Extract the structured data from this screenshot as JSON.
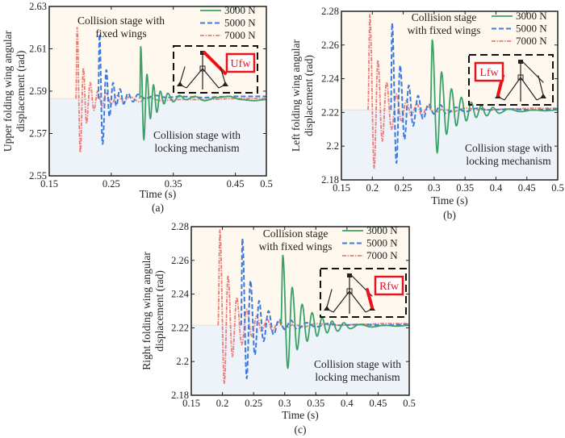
{
  "colors": {
    "series_3000": "#3aa367",
    "series_5000": "#3b7be0",
    "series_7000": "#ec7b78",
    "region_fixed": "#fef8ee",
    "region_locking": "#eef3f9",
    "inset_highlight": "#e8141a"
  },
  "chart_data": [
    {
      "id": "a",
      "type": "line",
      "caption": "(a)",
      "xlabel": "Time (s)",
      "ylabel_lines": [
        "Upper folding wing angular",
        "displacement (rad)"
      ],
      "xlim": [
        0.15,
        0.5
      ],
      "ylim": [
        2.55,
        2.63
      ],
      "xticks": [
        0.15,
        0.25,
        0.35,
        0.45,
        0.5
      ],
      "xtick_labels": [
        "0.15",
        "0.25",
        "0.35",
        "0.45",
        "0.5"
      ],
      "yticks": [
        2.55,
        2.57,
        2.59,
        2.61,
        2.63
      ],
      "ytick_labels": [
        "2.55",
        "2.57",
        "2.59",
        "2.61",
        "2.63"
      ],
      "threshold": 2.5865,
      "annotations": {
        "upper": [
          "Collision stage with",
          "fixed wings"
        ],
        "lower": [
          "Collision stage with",
          "locking mechanism"
        ]
      },
      "inset_label": "Ufw",
      "inset_highlight": "upper",
      "legend": [
        "3000 N",
        "5000 N",
        "7000 N"
      ],
      "legend_position": "top-right",
      "series": [
        {
          "name": "3000 N",
          "t0": 0.296,
          "peaks": [
            [
              0.2975,
              2.611
            ],
            [
              0.3025,
              2.567
            ],
            [
              0.3075,
              2.598
            ],
            [
              0.313,
              2.577
            ],
            [
              0.318,
              2.593
            ],
            [
              0.3235,
              2.58
            ],
            [
              0.329,
              2.59
            ],
            [
              0.335,
              2.584
            ],
            [
              0.341,
              2.589
            ],
            [
              0.35,
              2.585
            ],
            [
              0.36,
              2.588
            ],
            [
              0.37,
              2.586
            ],
            [
              0.385,
              2.5875
            ],
            [
              0.4,
              2.5855
            ],
            [
              0.42,
              2.587
            ],
            [
              0.44,
              2.5875
            ],
            [
              0.46,
              2.586
            ],
            [
              0.48,
              2.5855
            ],
            [
              0.5,
              2.586
            ]
          ]
        },
        {
          "name": "5000 N",
          "t0": 0.229,
          "peaks": [
            [
              0.231,
              2.617
            ],
            [
              0.236,
              2.565
            ],
            [
              0.242,
              2.6
            ],
            [
              0.247,
              2.578
            ],
            [
              0.253,
              2.594
            ],
            [
              0.258,
              2.583
            ],
            [
              0.264,
              2.591
            ],
            [
              0.27,
              2.584
            ],
            [
              0.277,
              2.589
            ],
            [
              0.285,
              2.585
            ],
            [
              0.293,
              2.5885
            ],
            [
              0.305,
              2.5865
            ],
            [
              0.32,
              2.588
            ],
            [
              0.34,
              2.587
            ],
            [
              0.36,
              2.5875
            ],
            [
              0.4,
              2.587
            ],
            [
              0.44,
              2.5875
            ],
            [
              0.48,
              2.5875
            ],
            [
              0.5,
              2.5875
            ]
          ]
        },
        {
          "name": "7000 N",
          "t0": 0.193,
          "peaks": [
            [
              0.195,
              2.62
            ],
            [
              0.2,
              2.561
            ],
            [
              0.205,
              2.601
            ],
            [
              0.21,
              2.575
            ],
            [
              0.216,
              2.594
            ],
            [
              0.222,
              2.581
            ],
            [
              0.228,
              2.59
            ],
            [
              0.235,
              2.583
            ],
            [
              0.242,
              2.589
            ],
            [
              0.25,
              2.584
            ],
            [
              0.26,
              2.588
            ],
            [
              0.27,
              2.585
            ],
            [
              0.28,
              2.5875
            ],
            [
              0.295,
              2.585
            ],
            [
              0.31,
              2.587
            ],
            [
              0.33,
              2.5855
            ],
            [
              0.36,
              2.586
            ],
            [
              0.4,
              2.586
            ],
            [
              0.45,
              2.5865
            ],
            [
              0.5,
              2.5865
            ]
          ]
        }
      ]
    },
    {
      "id": "b",
      "type": "line",
      "caption": "(b)",
      "xlabel": "Time (s)",
      "ylabel_lines": [
        "Left folding wing angular",
        "displacement (rad)"
      ],
      "xlim": [
        0.15,
        0.5
      ],
      "ylim": [
        2.18,
        2.28
      ],
      "xticks": [
        0.15,
        0.2,
        0.25,
        0.3,
        0.35,
        0.4,
        0.45,
        0.5
      ],
      "xtick_labels": [
        "0.15",
        "0.2",
        "0.25",
        "0.3",
        "0.35",
        "0.4",
        "0.45",
        "0.5"
      ],
      "yticks": [
        2.18,
        2.2,
        2.22,
        2.24,
        2.26,
        2.28
      ],
      "ytick_labels": [
        "2.18",
        "2.2",
        "2.22",
        "2.24",
        "2.26",
        "2.28"
      ],
      "threshold": 2.2215,
      "annotations": {
        "upper": [
          "Collision stage",
          "with fixed wings"
        ],
        "lower": [
          "Collision stage with",
          "locking mechanism"
        ]
      },
      "inset_label": "Lfw",
      "inset_highlight": "left",
      "legend": [
        "3000 N",
        "5000 N",
        "7000 N"
      ],
      "legend_position": "top-right",
      "series": [
        {
          "name": "3000 N",
          "t0": 0.294,
          "peaks": [
            [
              0.297,
              2.263
            ],
            [
              0.305,
              2.196
            ],
            [
              0.312,
              2.244
            ],
            [
              0.32,
              2.207
            ],
            [
              0.328,
              2.234
            ],
            [
              0.336,
              2.212
            ],
            [
              0.344,
              2.229
            ],
            [
              0.352,
              2.215
            ],
            [
              0.36,
              2.226
            ],
            [
              0.368,
              2.217
            ],
            [
              0.376,
              2.224
            ],
            [
              0.385,
              2.218
            ],
            [
              0.395,
              2.223
            ],
            [
              0.405,
              2.2195
            ],
            [
              0.42,
              2.222
            ],
            [
              0.44,
              2.2205
            ],
            [
              0.46,
              2.2215
            ],
            [
              0.48,
              2.221
            ],
            [
              0.5,
              2.2215
            ]
          ]
        },
        {
          "name": "5000 N",
          "t0": 0.23,
          "peaks": [
            [
              0.232,
              2.273
            ],
            [
              0.239,
              2.19
            ],
            [
              0.245,
              2.248
            ],
            [
              0.252,
              2.204
            ],
            [
              0.259,
              2.236
            ],
            [
              0.266,
              2.212
            ],
            [
              0.274,
              2.23
            ],
            [
              0.282,
              2.216
            ],
            [
              0.291,
              2.225
            ],
            [
              0.3,
              2.219
            ],
            [
              0.31,
              2.2245
            ],
            [
              0.32,
              2.219
            ],
            [
              0.335,
              2.223
            ],
            [
              0.35,
              2.2205
            ],
            [
              0.37,
              2.2225
            ],
            [
              0.39,
              2.2215
            ],
            [
              0.42,
              2.222
            ],
            [
              0.46,
              2.2215
            ],
            [
              0.5,
              2.222
            ]
          ]
        },
        {
          "name": "7000 N",
          "t0": 0.193,
          "peaks": [
            [
              0.196,
              2.278
            ],
            [
              0.203,
              2.187
            ],
            [
              0.209,
              2.251
            ],
            [
              0.216,
              2.203
            ],
            [
              0.223,
              2.238
            ],
            [
              0.231,
              2.21
            ],
            [
              0.239,
              2.231
            ],
            [
              0.247,
              2.215
            ],
            [
              0.255,
              2.227
            ],
            [
              0.263,
              2.218
            ],
            [
              0.272,
              2.225
            ],
            [
              0.28,
              2.2185
            ],
            [
              0.29,
              2.2235
            ],
            [
              0.3,
              2.2195
            ],
            [
              0.315,
              2.222
            ],
            [
              0.33,
              2.2205
            ],
            [
              0.35,
              2.2225
            ],
            [
              0.38,
              2.2215
            ],
            [
              0.42,
              2.222
            ],
            [
              0.46,
              2.2225
            ],
            [
              0.5,
              2.2225
            ]
          ]
        }
      ]
    },
    {
      "id": "c",
      "type": "line",
      "caption": "(c)",
      "xlabel": "Time (s)",
      "ylabel_lines": [
        "Right folding wing angular",
        "displacement (rad)"
      ],
      "xlim": [
        0.15,
        0.5
      ],
      "ylim": [
        2.18,
        2.28
      ],
      "xticks": [
        0.15,
        0.2,
        0.25,
        0.3,
        0.35,
        0.4,
        0.45,
        0.5
      ],
      "xtick_labels": [
        "0.15",
        "0.2",
        "0.25",
        "0.3",
        "0.35",
        "0.4",
        "0.45",
        "0.5"
      ],
      "yticks": [
        2.18,
        2.2,
        2.22,
        2.24,
        2.26,
        2.28
      ],
      "ytick_labels": [
        "2.18",
        "2.2",
        "2.22",
        "2.24",
        "2.26",
        "2.28"
      ],
      "threshold": 2.2215,
      "annotations": {
        "upper": [
          "Collision stage",
          "with fixed wings"
        ],
        "lower": [
          "Collision stage with",
          "locking mechanism"
        ]
      },
      "inset_label": "Rfw",
      "inset_highlight": "right",
      "legend": [
        "3000 N",
        "5000 N",
        "7000 N"
      ],
      "legend_position": "top-right",
      "series": [
        {
          "name": "3000 N",
          "t0": 0.294,
          "peaks": [
            [
              0.297,
              2.263
            ],
            [
              0.305,
              2.196
            ],
            [
              0.312,
              2.244
            ],
            [
              0.32,
              2.207
            ],
            [
              0.328,
              2.234
            ],
            [
              0.336,
              2.212
            ],
            [
              0.344,
              2.229
            ],
            [
              0.352,
              2.215
            ],
            [
              0.36,
              2.226
            ],
            [
              0.368,
              2.217
            ],
            [
              0.376,
              2.224
            ],
            [
              0.385,
              2.218
            ],
            [
              0.395,
              2.223
            ],
            [
              0.405,
              2.2195
            ],
            [
              0.42,
              2.222
            ],
            [
              0.44,
              2.2205
            ],
            [
              0.46,
              2.2215
            ],
            [
              0.48,
              2.221
            ],
            [
              0.5,
              2.2215
            ]
          ]
        },
        {
          "name": "5000 N",
          "t0": 0.23,
          "peaks": [
            [
              0.232,
              2.273
            ],
            [
              0.239,
              2.19
            ],
            [
              0.245,
              2.248
            ],
            [
              0.252,
              2.204
            ],
            [
              0.259,
              2.236
            ],
            [
              0.266,
              2.212
            ],
            [
              0.274,
              2.23
            ],
            [
              0.282,
              2.216
            ],
            [
              0.291,
              2.225
            ],
            [
              0.3,
              2.219
            ],
            [
              0.31,
              2.2245
            ],
            [
              0.32,
              2.219
            ],
            [
              0.335,
              2.223
            ],
            [
              0.35,
              2.2205
            ],
            [
              0.37,
              2.2225
            ],
            [
              0.39,
              2.2215
            ],
            [
              0.42,
              2.222
            ],
            [
              0.46,
              2.2215
            ],
            [
              0.5,
              2.222
            ]
          ]
        },
        {
          "name": "7000 N",
          "t0": 0.193,
          "peaks": [
            [
              0.196,
              2.278
            ],
            [
              0.203,
              2.187
            ],
            [
              0.209,
              2.251
            ],
            [
              0.216,
              2.203
            ],
            [
              0.223,
              2.238
            ],
            [
              0.231,
              2.21
            ],
            [
              0.239,
              2.231
            ],
            [
              0.247,
              2.215
            ],
            [
              0.255,
              2.227
            ],
            [
              0.263,
              2.218
            ],
            [
              0.272,
              2.225
            ],
            [
              0.28,
              2.2185
            ],
            [
              0.29,
              2.2235
            ],
            [
              0.3,
              2.2195
            ],
            [
              0.315,
              2.222
            ],
            [
              0.33,
              2.2205
            ],
            [
              0.35,
              2.2225
            ],
            [
              0.38,
              2.2215
            ],
            [
              0.42,
              2.222
            ],
            [
              0.46,
              2.2225
            ],
            [
              0.5,
              2.2225
            ]
          ]
        }
      ]
    }
  ]
}
